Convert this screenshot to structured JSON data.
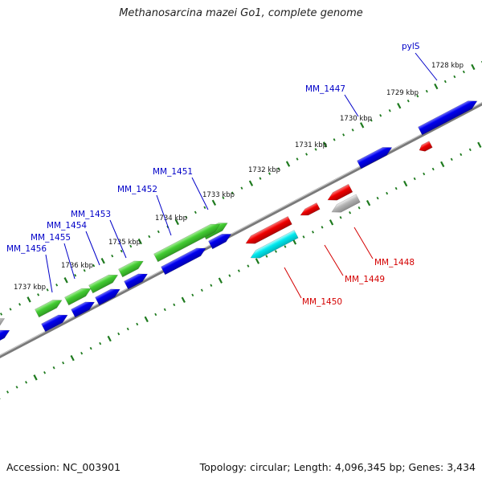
{
  "title": "Methanosarcina mazei Go1, complete genome",
  "accession": "Accession: NC_003901",
  "summary": "Topology: circular; Length: 4,096,345 bp; Genes: 3,434",
  "colors": {
    "backbone": "#7a7a7a",
    "tick": "#1e7a1e",
    "forward_label": "#0000c8",
    "reverse_label": "#d40000",
    "blue_gene": "#0000e6",
    "green_gene": "#44cc33",
    "red_gene": "#ee0000",
    "cyan_gene": "#00e8ee",
    "gray_gene": "#b4b4b4"
  },
  "scale_labels": [
    {
      "text": "1728 kbp"
    },
    {
      "text": "1729 kbp"
    },
    {
      "text": "1730 kbp"
    },
    {
      "text": "1731 kbp"
    },
    {
      "text": "1732 kbp"
    },
    {
      "text": "1733 kbp"
    },
    {
      "text": "1734 kbp"
    },
    {
      "text": "1735 kbp"
    },
    {
      "text": "1736 kbp"
    },
    {
      "text": "1737 kbp"
    }
  ],
  "gene_labels": [
    {
      "text": "pylS",
      "strand": "forward"
    },
    {
      "text": "MM_1447",
      "strand": "forward"
    },
    {
      "text": "MM_1451",
      "strand": "forward"
    },
    {
      "text": "MM_1452",
      "strand": "forward"
    },
    {
      "text": "MM_1453",
      "strand": "forward"
    },
    {
      "text": "MM_1454",
      "strand": "forward"
    },
    {
      "text": "MM_1455",
      "strand": "forward"
    },
    {
      "text": "MM_1456",
      "strand": "forward"
    },
    {
      "text": "MM_1448",
      "strand": "reverse"
    },
    {
      "text": "MM_1449",
      "strand": "reverse"
    },
    {
      "text": "MM_1450",
      "strand": "reverse"
    }
  ]
}
